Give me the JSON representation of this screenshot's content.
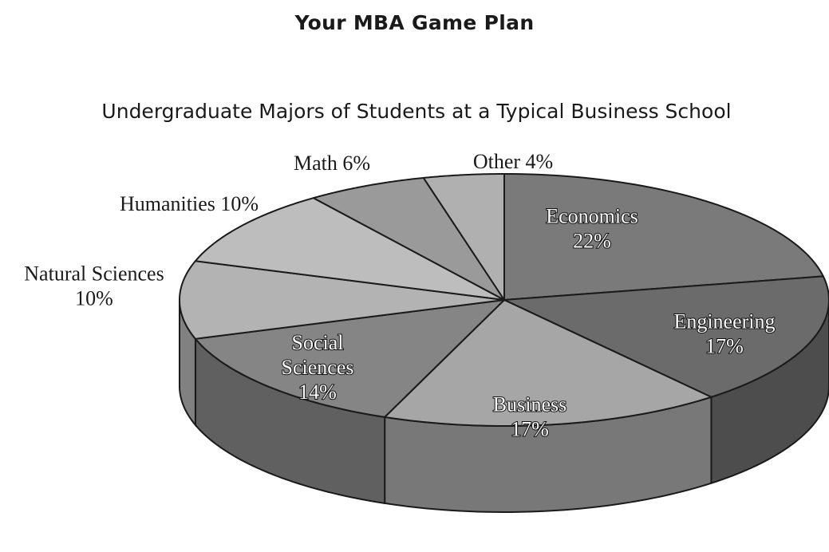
{
  "page_title": "Your MBA Game Plan",
  "chart_data": {
    "type": "pie",
    "title": "Undergraduate Majors of Students at a Typical Business School",
    "slices": [
      {
        "label": "Economics",
        "value": 22,
        "display": "22%",
        "color": "#7a7a7a",
        "label_style": "inside"
      },
      {
        "label": "Engineering",
        "value": 17,
        "display": "17%",
        "color": "#6b6b6b",
        "label_style": "inside"
      },
      {
        "label": "Business",
        "value": 17,
        "display": "17%",
        "color": "#a6a6a6",
        "label_style": "inside"
      },
      {
        "label": "Social Sciences",
        "value": 14,
        "display": "14%",
        "color": "#858585",
        "label_style": "inside"
      },
      {
        "label": "Natural Sciences",
        "value": 10,
        "display": "10%",
        "color": "#b3b3b3",
        "label_style": "outside"
      },
      {
        "label": "Humanities",
        "value": 10,
        "display": "10%",
        "color": "#bdbdbd",
        "label_style": "outside"
      },
      {
        "label": "Math",
        "value": 6,
        "display": "6%",
        "color": "#9a9a9a",
        "label_style": "outside"
      },
      {
        "label": "Other",
        "value": 4,
        "display": "4%",
        "color": "#b0b0b0",
        "label_style": "outside"
      }
    ]
  }
}
